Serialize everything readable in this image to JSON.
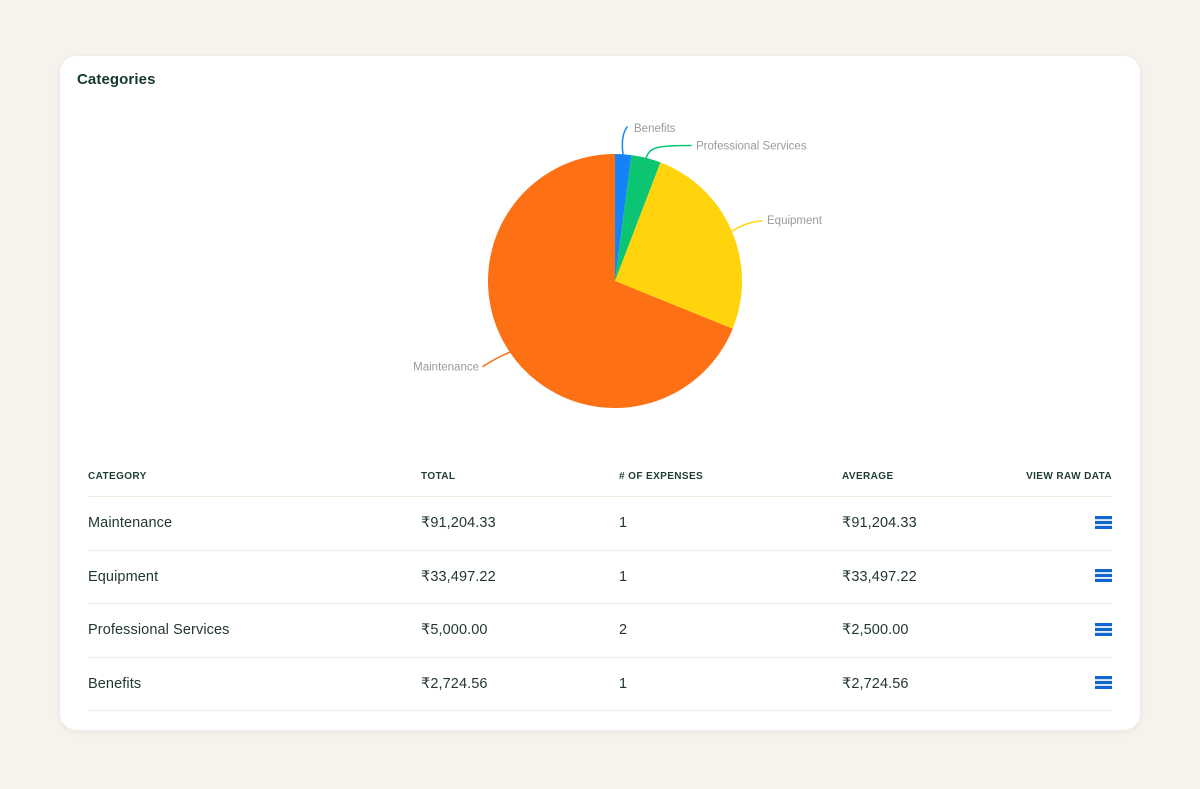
{
  "card": {
    "title": "Categories"
  },
  "chart_data": {
    "type": "pie",
    "title": "Categories",
    "labels": [
      "Benefits",
      "Professional Services",
      "Equipment",
      "Maintenance"
    ],
    "values": [
      2724.56,
      5000.0,
      33497.22,
      91204.33
    ],
    "colors": [
      "#1583f7",
      "#0cc573",
      "#ffd40d",
      "#fd7014"
    ],
    "label_text_color": "#9a9a9a",
    "start_position": "top",
    "direction": "clockwise",
    "legend_position": "none (leader-line labels)"
  },
  "table": {
    "columns": [
      "Category",
      "Total",
      "# of Expenses",
      "Average",
      "View Raw Data"
    ],
    "rows": [
      {
        "category": "Maintenance",
        "total": "₹91,204.33",
        "expenses": "1",
        "average": "₹91,204.33"
      },
      {
        "category": "Equipment",
        "total": "₹33,497.22",
        "expenses": "1",
        "average": "₹33,497.22"
      },
      {
        "category": "Professional Services",
        "total": "₹5,000.00",
        "expenses": "2",
        "average": "₹2,500.00"
      },
      {
        "category": "Benefits",
        "total": "₹2,724.56",
        "expenses": "1",
        "average": "₹2,724.56"
      }
    ]
  },
  "icons": {
    "view_raw_data": "menu-icon"
  },
  "colors": {
    "page_background": "#f6f3ed",
    "card_background": "#ffffff",
    "title_text": "#14382e",
    "header_text": "#1f3d33",
    "cell_text": "#22382f",
    "divider": "#f4ece0",
    "menu_icon": "#1165cf"
  }
}
